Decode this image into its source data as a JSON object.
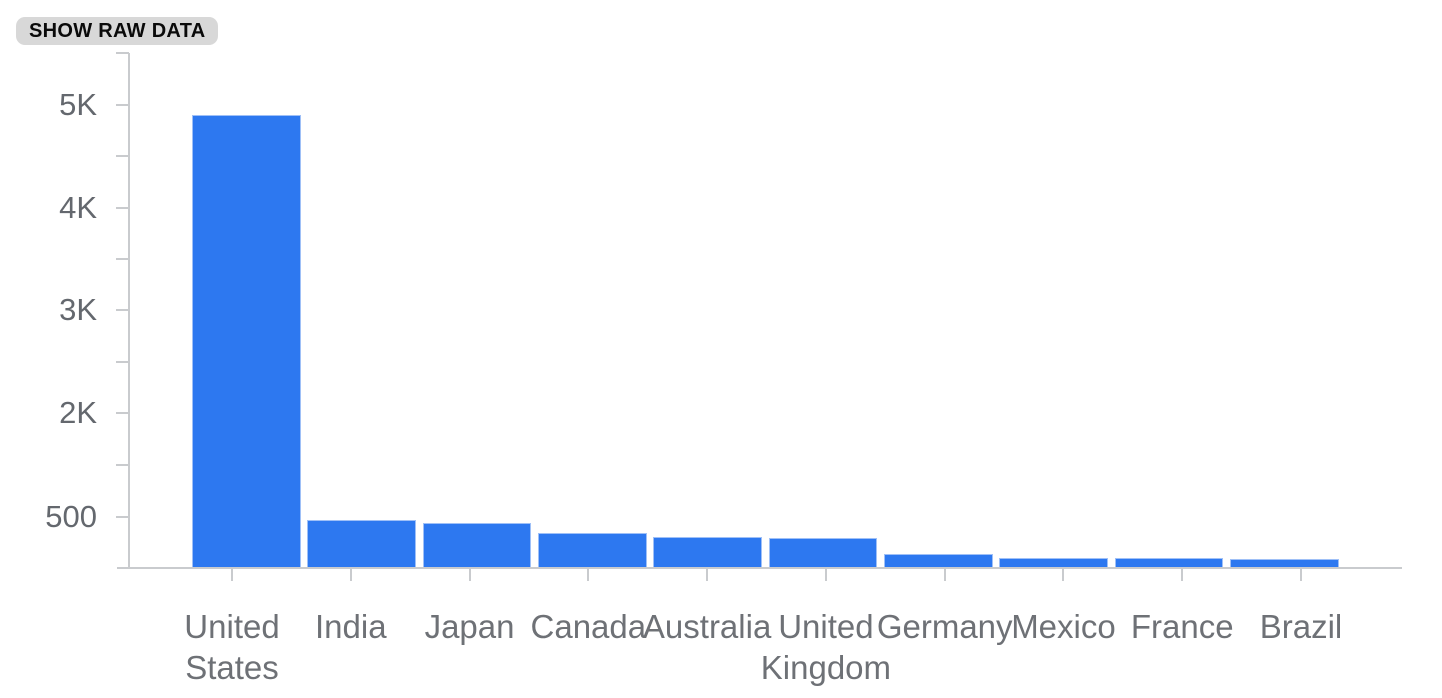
{
  "chip": {
    "label": "SHOW RAW DATA"
  },
  "colors": {
    "bar": "#2d78f0",
    "bar_edge": "#9fc0f7",
    "axis": "#c9cbce",
    "y_tick_label": "#64686e",
    "x_tick_label": "#6e7176",
    "chip_bg": "#d8d8d8",
    "chip_text": "#0a0a0a",
    "background": "#ffffff"
  },
  "chart_data": {
    "type": "bar",
    "title": "",
    "xlabel": "",
    "ylabel": "",
    "categories": [
      "United States",
      "India",
      "Japan",
      "Canada",
      "Australia",
      "United Kingdom",
      "Germany",
      "Mexico",
      "France",
      "Brazil"
    ],
    "values": [
      4900,
      470,
      440,
      345,
      305,
      295,
      135,
      90,
      88,
      80
    ],
    "y_ticks": [
      {
        "label": "5K",
        "value": 5000
      },
      {
        "label": "4K",
        "value": 4000
      },
      {
        "label": "3K",
        "value": 3000
      },
      {
        "label": "2K",
        "value": 2000
      },
      {
        "label": "500",
        "value": 500
      }
    ],
    "ylim": [
      0,
      5500
    ],
    "grid": false,
    "legend": false
  }
}
